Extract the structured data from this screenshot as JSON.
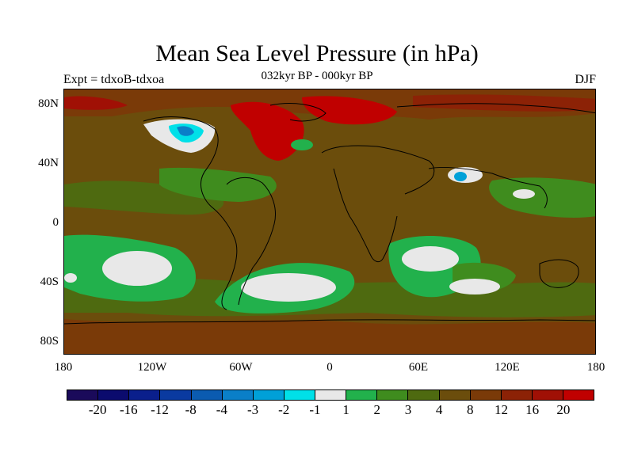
{
  "title": "Mean Sea Level Pressure (in hPa)",
  "subtitle": "032kyr BP - 000kyr BP",
  "left_label": "Expt = tdxoB-tdxoa",
  "right_label": "DJF",
  "axes": {
    "y_ticks": [
      "80N",
      "40N",
      "0",
      "40S",
      "80S"
    ],
    "x_ticks": [
      "180",
      "120W",
      "60W",
      "0",
      "60E",
      "120E",
      "180"
    ]
  },
  "colorbar": {
    "colors": [
      "#1a0a5a",
      "#0b0b6e",
      "#0a1f8c",
      "#0a3aa0",
      "#0b5bb0",
      "#0a7fc8",
      "#00a0d8",
      "#00e0e8",
      "#e8e8e8",
      "#22b14c",
      "#3f8c1e",
      "#4e6a10",
      "#6b4d0c",
      "#7a3a08",
      "#8c2206",
      "#a01005",
      "#c00000"
    ],
    "labels": [
      "-20",
      "-16",
      "-12",
      "-8",
      "-4",
      "-3",
      "-2",
      "-1",
      "1",
      "2",
      "3",
      "4",
      "8",
      "12",
      "16",
      "20"
    ]
  },
  "legend_colors": {
    "land_brown": "#6b4d0c",
    "ocean_green_dark": "#4e6a10",
    "green": "#22b14c",
    "mid_green": "#3f8c1e",
    "white": "#e8e8e8",
    "red": "#c00000",
    "darkred": "#8c2206",
    "cyan": "#00e0e8",
    "blue": "#0a7fc8"
  }
}
